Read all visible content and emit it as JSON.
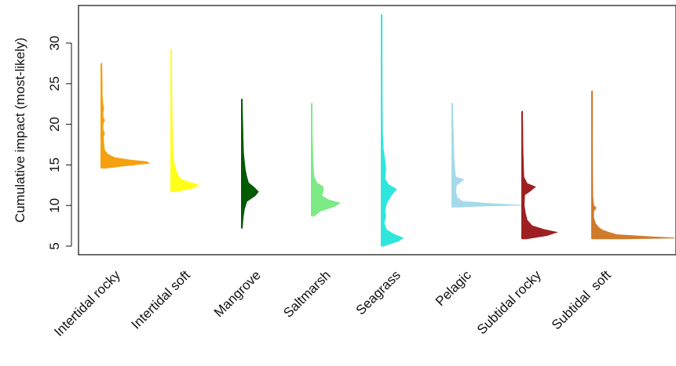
{
  "chart_data": {
    "type": "violin",
    "title": "",
    "xlabel": "",
    "ylabel": "Cumulative impact (most-likely)",
    "ylim": [
      4,
      34
    ],
    "yticks": [
      5,
      10,
      15,
      20,
      25,
      30
    ],
    "grid": false,
    "legend": "none",
    "categories": [
      "Intertidal rocky",
      "Intertidal soft",
      "Mangrove",
      "Saltmarsh",
      "Seagrass",
      "Pelagic",
      "Subtidal rocky",
      "Subtidal  soft"
    ],
    "series": [
      {
        "category": "Intertidal rocky",
        "color": "#F5A00F",
        "range": [
          14.6,
          27.5
        ],
        "density": [
          [
            14.6,
            5
          ],
          [
            14.9,
            30
          ],
          [
            15.2,
            58
          ],
          [
            15.4,
            55
          ],
          [
            15.6,
            35
          ],
          [
            15.9,
            16
          ],
          [
            16.3,
            8
          ],
          [
            16.8,
            4
          ],
          [
            17.5,
            3
          ],
          [
            18.5,
            2.5
          ],
          [
            18.9,
            4
          ],
          [
            19.3,
            2
          ],
          [
            20.0,
            2
          ],
          [
            20.5,
            4
          ],
          [
            20.9,
            2
          ],
          [
            21.5,
            2
          ],
          [
            21.9,
            3
          ],
          [
            22.4,
            2
          ],
          [
            23.5,
            1
          ],
          [
            25.0,
            1
          ],
          [
            27.5,
            0.5
          ]
        ]
      },
      {
        "category": "Intertidal soft",
        "color": "#FFFF1A",
        "range": [
          11.7,
          29.2
        ],
        "density": [
          [
            11.7,
            5
          ],
          [
            12.1,
            25
          ],
          [
            12.5,
            34
          ],
          [
            12.8,
            24
          ],
          [
            13.2,
            12
          ],
          [
            13.8,
            8
          ],
          [
            14.5,
            5
          ],
          [
            15.5,
            3
          ],
          [
            17.0,
            2
          ],
          [
            19.0,
            1.5
          ],
          [
            21.5,
            1
          ],
          [
            24.0,
            0.8
          ],
          [
            27.0,
            0.6
          ],
          [
            29.2,
            0.4
          ]
        ]
      },
      {
        "category": "Mangrove",
        "color": "#005A00",
        "range": [
          7.2,
          23.1
        ],
        "density": [
          [
            7.2,
            0.5
          ],
          [
            8.5,
            1.5
          ],
          [
            9.5,
            3
          ],
          [
            10.5,
            6
          ],
          [
            11.2,
            16
          ],
          [
            11.7,
            20
          ],
          [
            12.2,
            15
          ],
          [
            12.8,
            8
          ],
          [
            13.5,
            6
          ],
          [
            14.5,
            4
          ],
          [
            15.5,
            3
          ],
          [
            16.5,
            2
          ],
          [
            18.0,
            1.5
          ],
          [
            20.0,
            1
          ],
          [
            23.1,
            0.4
          ]
        ]
      },
      {
        "category": "Saltmarsh",
        "color": "#7DEB85",
        "range": [
          8.7,
          22.6
        ],
        "density": [
          [
            8.7,
            3
          ],
          [
            9.3,
            10
          ],
          [
            9.9,
            28
          ],
          [
            10.3,
            34
          ],
          [
            10.7,
            20
          ],
          [
            11.2,
            12
          ],
          [
            11.8,
            14
          ],
          [
            12.3,
            14
          ],
          [
            12.8,
            6
          ],
          [
            13.5,
            3
          ],
          [
            14.5,
            2
          ],
          [
            15.5,
            1.5
          ],
          [
            17.0,
            1
          ],
          [
            19.0,
            0.6
          ],
          [
            22.6,
            0.4
          ]
        ]
      },
      {
        "category": "Seagrass",
        "color": "#2EE6DC",
        "range": [
          5.0,
          33.5
        ],
        "density": [
          [
            5.0,
            2
          ],
          [
            5.6,
            20
          ],
          [
            6.0,
            26
          ],
          [
            6.4,
            16
          ],
          [
            7.0,
            6
          ],
          [
            7.8,
            3
          ],
          [
            8.7,
            5
          ],
          [
            9.3,
            4
          ],
          [
            10.3,
            6
          ],
          [
            11.3,
            12
          ],
          [
            12.0,
            18
          ],
          [
            12.6,
            8
          ],
          [
            13.3,
            4
          ],
          [
            14.5,
            5
          ],
          [
            15.5,
            4
          ],
          [
            17.0,
            2
          ],
          [
            19.0,
            1
          ],
          [
            22.0,
            0.8
          ],
          [
            26.0,
            0.6
          ],
          [
            30.0,
            0.5
          ],
          [
            33.5,
            0.3
          ]
        ]
      },
      {
        "category": "Pelagic",
        "color": "#A6DAEA",
        "range": [
          9.8,
          22.6
        ],
        "density": [
          [
            9.8,
            6
          ],
          [
            9.95,
            40
          ],
          [
            10.05,
            85
          ],
          [
            10.2,
            50
          ],
          [
            10.5,
            12
          ],
          [
            11.0,
            6
          ],
          [
            11.7,
            4
          ],
          [
            12.5,
            5
          ],
          [
            13.2,
            14
          ],
          [
            13.5,
            4
          ],
          [
            14.5,
            3
          ],
          [
            16.0,
            2
          ],
          [
            18.0,
            1.5
          ],
          [
            20.0,
            1
          ],
          [
            22.6,
            0.4
          ]
        ]
      },
      {
        "category": "Subtidal rocky",
        "color": "#9E2022",
        "range": [
          5.9,
          21.6
        ],
        "density": [
          [
            5.9,
            5
          ],
          [
            6.3,
            30
          ],
          [
            6.7,
            42
          ],
          [
            7.0,
            28
          ],
          [
            7.5,
            12
          ],
          [
            8.2,
            6
          ],
          [
            9.0,
            4
          ],
          [
            10.0,
            2.5
          ],
          [
            11.3,
            3
          ],
          [
            11.8,
            10
          ],
          [
            12.3,
            16
          ],
          [
            12.7,
            6
          ],
          [
            13.5,
            2
          ],
          [
            15.0,
            1.5
          ],
          [
            17.0,
            1
          ],
          [
            19.0,
            0.8
          ],
          [
            21.6,
            0.4
          ]
        ]
      },
      {
        "category": "Subtidal  soft",
        "color": "#D07A2C",
        "range": [
          5.9,
          24.1
        ],
        "density": [
          [
            5.9,
            40
          ],
          [
            6.0,
            100
          ],
          [
            6.15,
            70
          ],
          [
            6.4,
            30
          ],
          [
            6.7,
            20
          ],
          [
            7.0,
            12
          ],
          [
            7.3,
            8
          ],
          [
            7.8,
            4
          ],
          [
            8.5,
            2
          ],
          [
            9.3,
            2
          ],
          [
            9.7,
            5
          ],
          [
            10.0,
            2
          ],
          [
            11.0,
            1
          ],
          [
            13.0,
            0.8
          ],
          [
            16.0,
            0.6
          ],
          [
            20.0,
            0.5
          ],
          [
            24.1,
            0.3
          ]
        ]
      }
    ]
  }
}
